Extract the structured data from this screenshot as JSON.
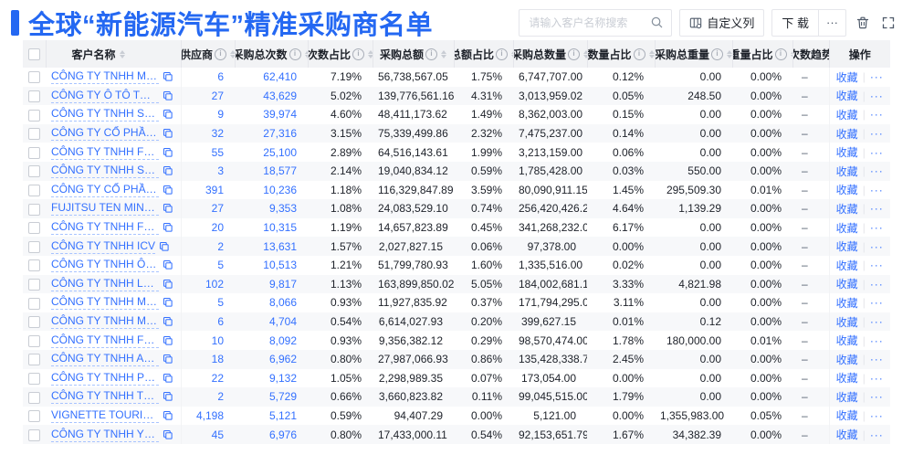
{
  "page": {
    "title": "全球“新能源汽车”精准采购商名单"
  },
  "toolbar": {
    "search_placeholder": "请输入客户名称搜索",
    "customize_columns": "自定义列",
    "download": "下 载",
    "more": "···"
  },
  "table": {
    "columns": [
      {
        "key": "name",
        "label": "客户名称",
        "info": false,
        "sortable": true
      },
      {
        "key": "supplier",
        "label": "供应商",
        "info": true,
        "sortable": true,
        "blue": true
      },
      {
        "key": "total_count",
        "label": "采购总次数",
        "info": true,
        "sortable": true,
        "blue": true
      },
      {
        "key": "count_ratio",
        "label": "次数占比",
        "info": true,
        "sortable": true
      },
      {
        "key": "total_amount",
        "label": "采购总额",
        "info": true,
        "sortable": true
      },
      {
        "key": "amount_ratio",
        "label": "总额占比",
        "info": true,
        "sortable": true
      },
      {
        "key": "total_qty",
        "label": "采购总数量",
        "info": true,
        "sortable": true
      },
      {
        "key": "qty_ratio",
        "label": "数量占比",
        "info": true,
        "sortable": true
      },
      {
        "key": "total_weight",
        "label": "采购总重量",
        "info": true,
        "sortable": true
      },
      {
        "key": "weight_ratio",
        "label": "重量占比",
        "info": true,
        "sortable": true
      },
      {
        "key": "trend",
        "label": "次数趋势",
        "info": false,
        "sortable": false
      },
      {
        "key": "ops",
        "label": "操作",
        "info": false,
        "sortable": false
      }
    ],
    "actions": {
      "favorite": "收藏",
      "more": "···"
    },
    "rows": [
      {
        "name": "CÔNG TY TNHH MTV SẢN XUẤ...",
        "supplier": "6",
        "total_count": "62,410",
        "count_ratio": "7.19%",
        "total_amount": "56,738,567.05",
        "amount_ratio": "1.75%",
        "total_qty": "6,747,707.00",
        "qty_ratio": "0.12%",
        "total_weight": "0.00",
        "weight_ratio": "0.00%",
        "trend": "–"
      },
      {
        "name": "CÔNG TY Ô TÔ TOYOTA VIỆT ...",
        "supplier": "27",
        "total_count": "43,629",
        "count_ratio": "5.02%",
        "total_amount": "139,776,561.16",
        "amount_ratio": "4.31%",
        "total_qty": "3,013,959.02",
        "qty_ratio": "0.05%",
        "total_weight": "248.50",
        "weight_ratio": "0.00%",
        "trend": "–"
      },
      {
        "name": "CÔNG TY TNHH SẢN XUẤT VÀ ...",
        "supplier": "9",
        "total_count": "39,974",
        "count_ratio": "4.60%",
        "total_amount": "48,411,173.62",
        "amount_ratio": "1.49%",
        "total_qty": "8,362,003.00",
        "qty_ratio": "0.15%",
        "total_weight": "0.00",
        "weight_ratio": "0.00%",
        "trend": "–"
      },
      {
        "name": "CÔNG TY CỔ PHẦN SẢN XUẤT...",
        "supplier": "32",
        "total_count": "27,316",
        "count_ratio": "3.15%",
        "total_amount": "75,339,499.86",
        "amount_ratio": "2.32%",
        "total_qty": "7,475,237.00",
        "qty_ratio": "0.14%",
        "total_weight": "0.00",
        "weight_ratio": "0.00%",
        "trend": "–"
      },
      {
        "name": "CÔNG TY TNHH FORD VIỆT NAM",
        "supplier": "55",
        "total_count": "25,100",
        "count_ratio": "2.89%",
        "total_amount": "64,516,143.61",
        "amount_ratio": "1.99%",
        "total_qty": "3,213,159.00",
        "qty_ratio": "0.06%",
        "total_weight": "0.00",
        "weight_ratio": "0.00%",
        "trend": "–"
      },
      {
        "name": "CÔNG TY TNHH SẢN XUẤT VÀ ...",
        "supplier": "3",
        "total_count": "18,577",
        "count_ratio": "2.14%",
        "total_amount": "19,040,834.12",
        "amount_ratio": "0.59%",
        "total_qty": "1,785,428.00",
        "qty_ratio": "0.03%",
        "total_weight": "550.00",
        "weight_ratio": "0.00%",
        "trend": "–"
      },
      {
        "name": "CÔNG TY CỔ PHẦN SẢN XUẤT...",
        "supplier": "391",
        "total_count": "10,236",
        "count_ratio": "1.18%",
        "total_amount": "116,329,847.89",
        "amount_ratio": "3.59%",
        "total_qty": "80,090,911.15",
        "qty_ratio": "1.45%",
        "total_weight": "295,509.30",
        "weight_ratio": "0.01%",
        "trend": "–"
      },
      {
        "name": "FUJITSU TEN MINDA INDIA PVT...",
        "supplier": "27",
        "total_count": "9,353",
        "count_ratio": "1.08%",
        "total_amount": "24,083,529.10",
        "amount_ratio": "0.74%",
        "total_qty": "256,420,426.29",
        "qty_ratio": "4.64%",
        "total_weight": "1,139.29",
        "weight_ratio": "0.00%",
        "trend": "–"
      },
      {
        "name": "CÔNG TY TNHH FURUKAWA A...",
        "supplier": "20",
        "total_count": "10,315",
        "count_ratio": "1.19%",
        "total_amount": "14,657,823.89",
        "amount_ratio": "0.45%",
        "total_qty": "341,268,232.00",
        "qty_ratio": "6.17%",
        "total_weight": "0.00",
        "weight_ratio": "0.00%",
        "trend": "–"
      },
      {
        "name": "CÔNG TY TNHH ICV",
        "supplier": "2",
        "total_count": "13,631",
        "count_ratio": "1.57%",
        "total_amount": "2,027,827.15",
        "amount_ratio": "0.06%",
        "total_qty": "97,378.00",
        "qty_ratio": "0.00%",
        "total_weight": "0.00",
        "weight_ratio": "0.00%",
        "trend": "–"
      },
      {
        "name": "CÔNG TY TNHH Ô TÔ MITSUBI...",
        "supplier": "5",
        "total_count": "10,513",
        "count_ratio": "1.21%",
        "total_amount": "51,799,780.93",
        "amount_ratio": "1.60%",
        "total_qty": "1,335,516.00",
        "qty_ratio": "0.02%",
        "total_weight": "0.00",
        "weight_ratio": "0.00%",
        "trend": "–"
      },
      {
        "name": "CÔNG TY TNHH LG ELECTRON...",
        "supplier": "102",
        "total_count": "9,817",
        "count_ratio": "1.13%",
        "total_amount": "163,899,850.02",
        "amount_ratio": "5.05%",
        "total_qty": "184,002,681.15",
        "qty_ratio": "3.33%",
        "total_weight": "4,821.98",
        "weight_ratio": "0.00%",
        "trend": "–"
      },
      {
        "name": "CÔNG TY TNHH MỘT THÀNH V...",
        "supplier": "5",
        "total_count": "8,066",
        "count_ratio": "0.93%",
        "total_amount": "11,927,835.92",
        "amount_ratio": "0.37%",
        "total_qty": "171,794,295.00",
        "qty_ratio": "3.11%",
        "total_weight": "0.00",
        "weight_ratio": "0.00%",
        "trend": "–"
      },
      {
        "name": "CÔNG TY TNHH MERCEDES–B...",
        "supplier": "6",
        "total_count": "4,704",
        "count_ratio": "0.54%",
        "total_amount": "6,614,027.93",
        "amount_ratio": "0.20%",
        "total_qty": "399,627.15",
        "qty_ratio": "0.01%",
        "total_weight": "0.12",
        "weight_ratio": "0.00%",
        "trend": "–"
      },
      {
        "name": "CÔNG TY TNHH FURUKAWA A...",
        "supplier": "10",
        "total_count": "8,092",
        "count_ratio": "0.93%",
        "total_amount": "9,356,382.12",
        "amount_ratio": "0.29%",
        "total_qty": "98,570,474.00",
        "qty_ratio": "1.78%",
        "total_weight": "180,000.00",
        "weight_ratio": "0.01%",
        "trend": "–"
      },
      {
        "name": "CÔNG TY TNHH AUTEL VIỆT N...",
        "supplier": "18",
        "total_count": "6,962",
        "count_ratio": "0.80%",
        "total_amount": "27,987,066.93",
        "amount_ratio": "0.86%",
        "total_qty": "135,428,338.71",
        "qty_ratio": "2.45%",
        "total_weight": "0.00",
        "weight_ratio": "0.00%",
        "trend": "–"
      },
      {
        "name": "CÔNG TY TNHH PHÂN PHỐI T...",
        "supplier": "22",
        "total_count": "9,132",
        "count_ratio": "1.05%",
        "total_amount": "2,298,989.35",
        "amount_ratio": "0.07%",
        "total_qty": "173,054.00",
        "qty_ratio": "0.00%",
        "total_weight": "0.00",
        "weight_ratio": "0.00%",
        "trend": "–"
      },
      {
        "name": "CÔNG TY TNHH THN AUTOPAR...",
        "supplier": "2",
        "total_count": "5,729",
        "count_ratio": "0.66%",
        "total_amount": "3,660,823.82",
        "amount_ratio": "0.11%",
        "total_qty": "99,045,515.00",
        "qty_ratio": "1.79%",
        "total_weight": "0.00",
        "weight_ratio": "0.00%",
        "trend": "–"
      },
      {
        "name": "VIGNETTE TOURISTIQUE G UNI...",
        "supplier": "4,198",
        "total_count": "5,121",
        "count_ratio": "0.59%",
        "total_amount": "94,407.29",
        "amount_ratio": "0.00%",
        "total_qty": "5,121.00",
        "qty_ratio": "0.00%",
        "total_weight": "1,355,983.00",
        "weight_ratio": "0.05%",
        "trend": "–"
      },
      {
        "name": "CÔNG TY TNHH YOKOWO VIỆT...",
        "supplier": "45",
        "total_count": "6,976",
        "count_ratio": "0.80%",
        "total_amount": "17,433,000.11",
        "amount_ratio": "0.54%",
        "total_qty": "92,153,651.79",
        "qty_ratio": "1.67%",
        "total_weight": "34,382.39",
        "weight_ratio": "0.00%",
        "trend": "–"
      }
    ]
  }
}
